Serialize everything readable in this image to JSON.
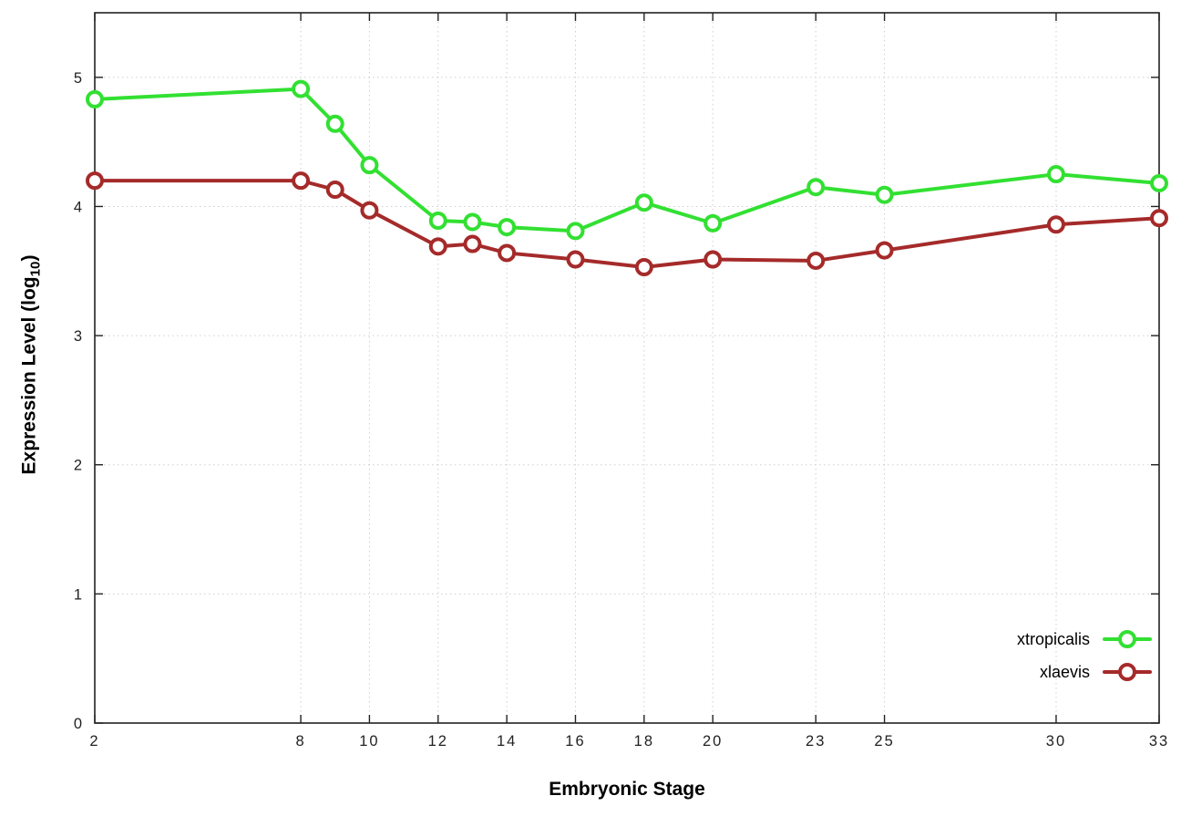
{
  "chart_data": {
    "type": "line",
    "title": "",
    "xlabel": "Embryonic Stage",
    "ylabel": "Expression Level (log10)",
    "ylabel_parts": {
      "main": "Expression Level (log",
      "sub": "10",
      "end": ")"
    },
    "x": [
      2,
      8,
      9,
      10,
      12,
      13,
      14,
      16,
      18,
      20,
      23,
      25,
      30,
      33
    ],
    "xticks": [
      2,
      8,
      10,
      12,
      14,
      16,
      18,
      20,
      23,
      25,
      30,
      33
    ],
    "yticks": [
      0,
      1,
      2,
      3,
      4,
      5
    ],
    "xlim": [
      2,
      33
    ],
    "ylim": [
      0,
      5.5
    ],
    "grid": true,
    "legend_position": "bottom-right",
    "series": [
      {
        "name": "xtropicalis",
        "color": "#32e032",
        "values": [
          4.83,
          4.91,
          4.64,
          4.32,
          3.89,
          3.88,
          3.84,
          3.81,
          4.03,
          3.87,
          4.15,
          4.09,
          4.25,
          4.18
        ]
      },
      {
        "name": "xlaevis",
        "color": "#a52a2a",
        "values": [
          4.2,
          4.2,
          4.13,
          3.97,
          3.69,
          3.71,
          3.64,
          3.59,
          3.53,
          3.59,
          3.58,
          3.66,
          3.86,
          3.91
        ]
      }
    ]
  },
  "colors": {
    "grid": "#cfcfcf",
    "border": "#222222",
    "tick_text": "#222222",
    "marker_fill": "#ffffff",
    "background": "#ffffff"
  }
}
